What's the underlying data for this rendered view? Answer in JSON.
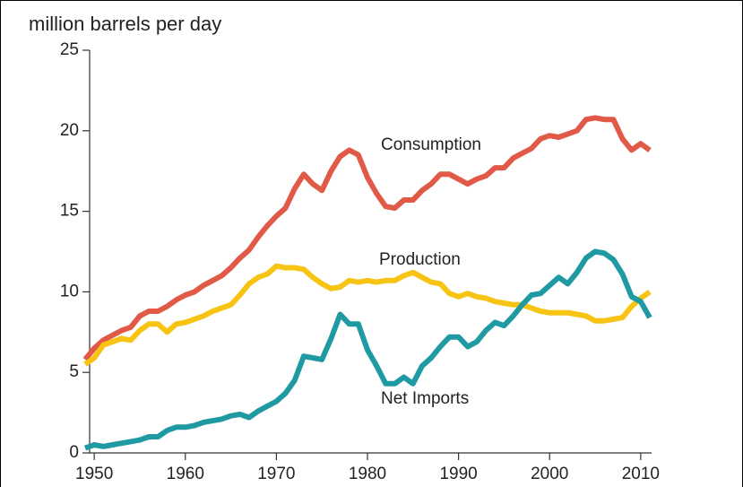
{
  "chart_data": {
    "type": "line",
    "y_axis_label": "million barrels per day",
    "x": [
      1949,
      1950,
      1951,
      1952,
      1953,
      1954,
      1955,
      1956,
      1957,
      1958,
      1959,
      1960,
      1961,
      1962,
      1963,
      1964,
      1965,
      1966,
      1967,
      1968,
      1969,
      1970,
      1971,
      1972,
      1973,
      1974,
      1975,
      1976,
      1977,
      1978,
      1979,
      1980,
      1981,
      1982,
      1983,
      1984,
      1985,
      1986,
      1987,
      1988,
      1989,
      1990,
      1991,
      1992,
      1993,
      1994,
      1995,
      1996,
      1997,
      1998,
      1999,
      2000,
      2001,
      2002,
      2003,
      2004,
      2005,
      2006,
      2007,
      2008,
      2009,
      2010,
      2011
    ],
    "series": [
      {
        "name": "Consumption",
        "color": "#e05a47",
        "values": [
          5.8,
          6.5,
          7.0,
          7.3,
          7.6,
          7.8,
          8.5,
          8.8,
          8.8,
          9.1,
          9.5,
          9.8,
          10.0,
          10.4,
          10.7,
          11.0,
          11.5,
          12.1,
          12.6,
          13.4,
          14.1,
          14.7,
          15.2,
          16.4,
          17.3,
          16.7,
          16.3,
          17.5,
          18.4,
          18.8,
          18.5,
          17.1,
          16.1,
          15.3,
          15.2,
          15.7,
          15.7,
          16.3,
          16.7,
          17.3,
          17.3,
          17.0,
          16.7,
          17.0,
          17.2,
          17.7,
          17.7,
          18.3,
          18.6,
          18.9,
          19.5,
          19.7,
          19.6,
          19.8,
          20.0,
          20.7,
          20.8,
          20.7,
          20.7,
          19.5,
          18.8,
          19.2,
          18.8
        ]
      },
      {
        "name": "Production",
        "color": "#f7c414",
        "values": [
          5.5,
          5.9,
          6.7,
          6.9,
          7.1,
          7.0,
          7.6,
          8.0,
          8.0,
          7.5,
          8.0,
          8.1,
          8.3,
          8.5,
          8.8,
          9.0,
          9.2,
          9.8,
          10.5,
          10.9,
          11.1,
          11.6,
          11.5,
          11.5,
          11.4,
          10.9,
          10.5,
          10.2,
          10.3,
          10.7,
          10.6,
          10.7,
          10.6,
          10.7,
          10.7,
          11.0,
          11.2,
          10.9,
          10.6,
          10.5,
          9.9,
          9.7,
          9.9,
          9.7,
          9.6,
          9.4,
          9.3,
          9.2,
          9.2,
          9.0,
          8.8,
          8.7,
          8.7,
          8.7,
          8.6,
          8.5,
          8.2,
          8.2,
          8.3,
          8.4,
          9.1,
          9.6,
          10.0
        ]
      },
      {
        "name": "Net Imports",
        "color": "#1f9aa3",
        "values": [
          0.3,
          0.5,
          0.4,
          0.5,
          0.6,
          0.7,
          0.8,
          1.0,
          1.0,
          1.4,
          1.6,
          1.6,
          1.7,
          1.9,
          2.0,
          2.1,
          2.3,
          2.4,
          2.2,
          2.6,
          2.9,
          3.2,
          3.7,
          4.5,
          6.0,
          5.9,
          5.8,
          7.1,
          8.6,
          8.0,
          8.0,
          6.4,
          5.4,
          4.3,
          4.3,
          4.7,
          4.3,
          5.4,
          5.9,
          6.6,
          7.2,
          7.2,
          6.6,
          6.9,
          7.6,
          8.1,
          7.9,
          8.5,
          9.2,
          9.8,
          9.9,
          10.4,
          10.9,
          10.5,
          11.2,
          12.1,
          12.5,
          12.4,
          12.0,
          11.1,
          9.7,
          9.4,
          8.4
        ]
      }
    ],
    "xlim": [
      1949,
      2011
    ],
    "xticks": [
      1950,
      1960,
      1970,
      1980,
      1990,
      2000,
      2010
    ],
    "ylim": [
      0,
      25
    ],
    "yticks": [
      0,
      5,
      10,
      15,
      20,
      25
    ],
    "grid": false
  }
}
